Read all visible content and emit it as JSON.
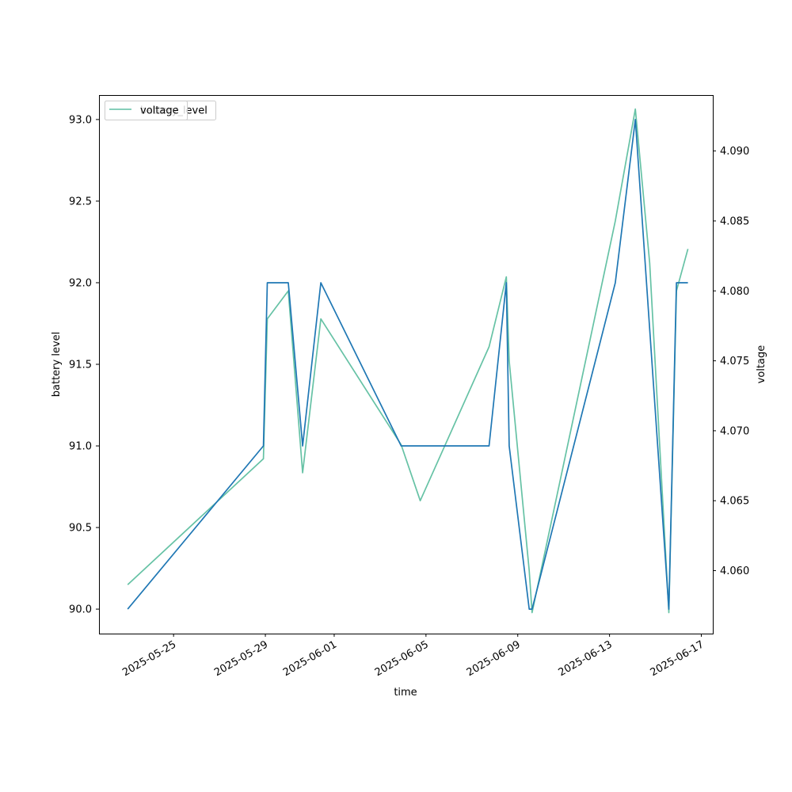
{
  "chart_data": {
    "type": "line",
    "xlabel": "time",
    "ylabel_left": "battery level",
    "ylabel_right": "voltage",
    "x_ticks": [
      "2025-05-25",
      "2025-05-29",
      "2025-06-01",
      "2025-06-05",
      "2025-06-09",
      "2025-06-13",
      "2025-06-17"
    ],
    "y_left_ticks": [
      "90.0",
      "90.5",
      "91.0",
      "91.5",
      "92.0",
      "92.5",
      "93.0"
    ],
    "y_right_ticks": [
      "4.060",
      "4.065",
      "4.070",
      "4.075",
      "4.080",
      "4.085",
      "4.090"
    ],
    "ylim_left": [
      89.85,
      93.15
    ],
    "ylim_right": [
      4.0555,
      4.094
    ],
    "xlim": [
      "2025-05-21T18:00",
      "2025-06-17T12:00"
    ],
    "grid": false,
    "legend": {
      "placement": "top-left",
      "entries": [
        {
          "label": "battery_level",
          "color": "#1f77b4"
        },
        {
          "label": "voltage",
          "color": "#66c2a5"
        }
      ]
    },
    "series": [
      {
        "name": "battery_level",
        "axis": "left",
        "color": "#1f77b4",
        "points": [
          [
            "2025-05-23T00:00",
            90.0
          ],
          [
            "2025-05-28T22:00",
            91.0
          ],
          [
            "2025-05-29T02:00",
            92.0
          ],
          [
            "2025-05-30T00:00",
            92.0
          ],
          [
            "2025-05-30T15:00",
            91.0
          ],
          [
            "2025-05-31T10:00",
            92.0
          ],
          [
            "2025-06-03T22:00",
            91.0
          ],
          [
            "2025-06-07T18:00",
            91.0
          ],
          [
            "2025-06-08T12:00",
            92.0
          ],
          [
            "2025-06-08T15:00",
            91.0
          ],
          [
            "2025-06-09T12:00",
            90.0
          ],
          [
            "2025-06-09T15:00",
            90.0
          ],
          [
            "2025-06-13T06:00",
            92.0
          ],
          [
            "2025-06-14T03:00",
            93.0
          ],
          [
            "2025-06-15T14:00",
            90.0
          ],
          [
            "2025-06-15T22:00",
            92.0
          ],
          [
            "2025-06-16T10:00",
            92.0
          ]
        ]
      },
      {
        "name": "voltage",
        "axis": "right",
        "color": "#66c2a5",
        "points": [
          [
            "2025-05-23T00:00",
            4.059
          ],
          [
            "2025-05-28T22:00",
            4.068
          ],
          [
            "2025-05-29T02:00",
            4.078
          ],
          [
            "2025-05-30T00:00",
            4.08
          ],
          [
            "2025-05-30T15:00",
            4.067
          ],
          [
            "2025-05-31T10:00",
            4.078
          ],
          [
            "2025-06-03T22:00",
            4.069
          ],
          [
            "2025-06-04T18:00",
            4.065
          ],
          [
            "2025-06-07T18:00",
            4.076
          ],
          [
            "2025-06-08T12:00",
            4.081
          ],
          [
            "2025-06-08T15:00",
            4.075
          ],
          [
            "2025-06-09T12:00",
            4.06
          ],
          [
            "2025-06-09T15:00",
            4.057
          ],
          [
            "2025-06-13T06:00",
            4.085
          ],
          [
            "2025-06-14T03:00",
            4.093
          ],
          [
            "2025-06-14T18:00",
            4.082
          ],
          [
            "2025-06-15T14:00",
            4.057
          ],
          [
            "2025-06-15T22:00",
            4.08
          ],
          [
            "2025-06-16T10:00",
            4.083
          ]
        ]
      }
    ]
  }
}
